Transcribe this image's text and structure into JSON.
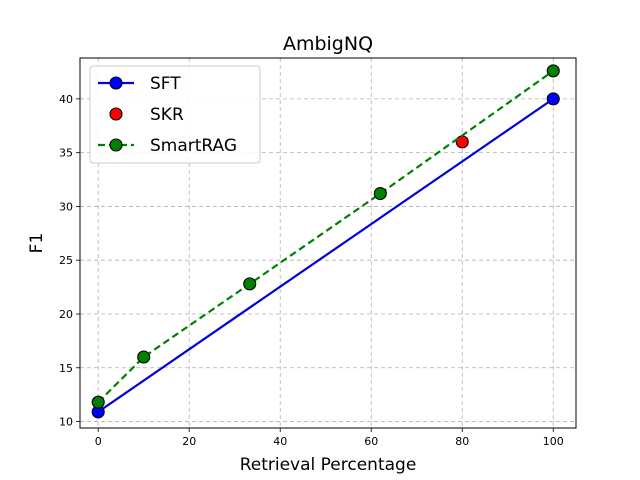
{
  "chart_data": {
    "type": "line",
    "title": "AmbigNQ",
    "xlabel": "Retrieval Percentage",
    "ylabel": "F1",
    "xlim": [
      -4,
      105
    ],
    "ylim": [
      9.4,
      43.8
    ],
    "xticks": [
      0,
      20,
      40,
      60,
      80,
      100
    ],
    "yticks": [
      10,
      15,
      20,
      25,
      30,
      35,
      40
    ],
    "grid": true,
    "legend_position": "top-left",
    "series": [
      {
        "name": "SFT",
        "style": "solid-line-with-markers",
        "line_color": "#0000dd",
        "marker_color": "#0000ff",
        "points": [
          {
            "x": 0,
            "y": 10.9
          },
          {
            "x": 100,
            "y": 40.0
          }
        ]
      },
      {
        "name": "SKR",
        "style": "markers-only",
        "marker_color": "#ff0000",
        "points": [
          {
            "x": 80,
            "y": 36.0
          }
        ]
      },
      {
        "name": "SmartRAG",
        "style": "dashed-line-with-markers",
        "line_color": "#008000",
        "marker_color": "#008000",
        "points": [
          {
            "x": 0,
            "y": 11.8
          },
          {
            "x": 10,
            "y": 16.0
          },
          {
            "x": 33.3,
            "y": 22.8
          },
          {
            "x": 62,
            "y": 31.2
          },
          {
            "x": 100,
            "y": 42.6
          }
        ]
      }
    ]
  }
}
